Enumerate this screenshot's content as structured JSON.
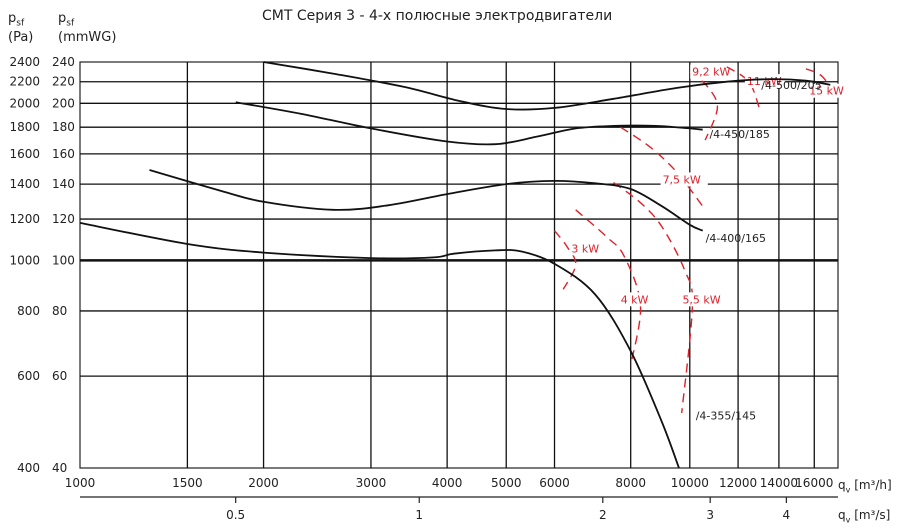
{
  "chart_data": {
    "type": "line",
    "title": "CMT   Серия 3 - 4-х полюсные электродвигатели",
    "ylabel_pa": {
      "main": "p",
      "sub": "sf",
      "unit": "(Pa)"
    },
    "ylabel_mmwg": {
      "main": "p",
      "sub": "sf",
      "unit": "(mmWG)"
    },
    "xlabel_m3h": {
      "main": "q",
      "sub": "v",
      "unit": "[m³/h]"
    },
    "xlabel_m3s": {
      "main": "q",
      "sub": "v",
      "unit": "[m³/s]"
    },
    "x_scale": "log",
    "y_scale": "log",
    "xlim": [
      1000,
      17500
    ],
    "ylim_pa": [
      400,
      2400
    ],
    "x_ticks_m3h": [
      "1000",
      "1500",
      "2000",
      "3000",
      "4000",
      "5000",
      "6000",
      "8000",
      "10000",
      "12000",
      "14000",
      "16000"
    ],
    "x_ticks_m3s": [
      "0.5",
      "1",
      "2",
      "3",
      "4"
    ],
    "y_ticks_pa": [
      "400",
      "600",
      "800",
      "1000",
      "1200",
      "1400",
      "1600",
      "1800",
      "2000",
      "2200",
      "2400"
    ],
    "y_ticks_mmwg": [
      "40",
      "60",
      "80",
      "100",
      "120",
      "140",
      "160",
      "180",
      "200",
      "220",
      "240"
    ],
    "series": [
      {
        "name": "/4-355/145",
        "points": [
          [
            1000,
            1180
          ],
          [
            1500,
            1075
          ],
          [
            2000,
            1035
          ],
          [
            3000,
            1010
          ],
          [
            3800,
            1013
          ],
          [
            4100,
            1030
          ],
          [
            4800,
            1045
          ],
          [
            5300,
            1040
          ],
          [
            6000,
            985
          ],
          [
            7000,
            860
          ],
          [
            8000,
            670
          ],
          [
            9000,
            490
          ],
          [
            9600,
            400
          ]
        ]
      },
      {
        "name": "/4-400/165",
        "points": [
          [
            1300,
            1490
          ],
          [
            1700,
            1360
          ],
          [
            2000,
            1295
          ],
          [
            2600,
            1250
          ],
          [
            3200,
            1275
          ],
          [
            4000,
            1340
          ],
          [
            5000,
            1400
          ],
          [
            6000,
            1420
          ],
          [
            7000,
            1405
          ],
          [
            8000,
            1370
          ],
          [
            9000,
            1270
          ],
          [
            10000,
            1170
          ],
          [
            10500,
            1140
          ]
        ]
      },
      {
        "name": "/4-450/185",
        "points": [
          [
            1800,
            2010
          ],
          [
            2300,
            1910
          ],
          [
            3000,
            1790
          ],
          [
            4000,
            1690
          ],
          [
            4800,
            1670
          ],
          [
            5600,
            1725
          ],
          [
            6500,
            1790
          ],
          [
            7500,
            1810
          ],
          [
            8800,
            1810
          ],
          [
            10000,
            1790
          ],
          [
            10500,
            1780
          ]
        ]
      },
      {
        "name": "/4-500/205",
        "points": [
          [
            2000,
            2400
          ],
          [
            2600,
            2280
          ],
          [
            3400,
            2150
          ],
          [
            4200,
            2020
          ],
          [
            5000,
            1950
          ],
          [
            6000,
            1960
          ],
          [
            7500,
            2040
          ],
          [
            9500,
            2140
          ],
          [
            11500,
            2200
          ],
          [
            13500,
            2225
          ],
          [
            15500,
            2210
          ],
          [
            17000,
            2170
          ]
        ]
      }
    ],
    "power_lines": [
      {
        "label": "3 kW",
        "points": [
          [
            6000,
            1140
          ],
          [
            6300,
            1060
          ],
          [
            6500,
            980
          ],
          [
            6200,
            880
          ]
        ]
      },
      {
        "label": "4 kW",
        "points": [
          [
            6500,
            1250
          ],
          [
            7300,
            1110
          ],
          [
            7800,
            1020
          ],
          [
            8300,
            820
          ],
          [
            8000,
            630
          ]
        ]
      },
      {
        "label": "5,5 kW",
        "points": [
          [
            7500,
            1410
          ],
          [
            8300,
            1290
          ],
          [
            9000,
            1160
          ],
          [
            9800,
            960
          ],
          [
            10100,
            820
          ],
          [
            9700,
            510
          ]
        ]
      },
      {
        "label": "7,5 kW",
        "points": [
          [
            7700,
            1800
          ],
          [
            8600,
            1650
          ],
          [
            9500,
            1480
          ],
          [
            10500,
            1270
          ]
        ]
      },
      {
        "label": "9,2 kW",
        "points": [
          [
            10000,
            2300
          ],
          [
            10700,
            2150
          ],
          [
            11100,
            1960
          ],
          [
            10600,
            1700
          ]
        ]
      },
      {
        "label": "11 kW",
        "points": [
          [
            11500,
            2350
          ],
          [
            12500,
            2200
          ],
          [
            13000,
            1960
          ]
        ]
      },
      {
        "label": "15 kW",
        "points": [
          [
            15500,
            2330
          ],
          [
            16500,
            2250
          ],
          [
            17400,
            2050
          ]
        ]
      }
    ]
  }
}
